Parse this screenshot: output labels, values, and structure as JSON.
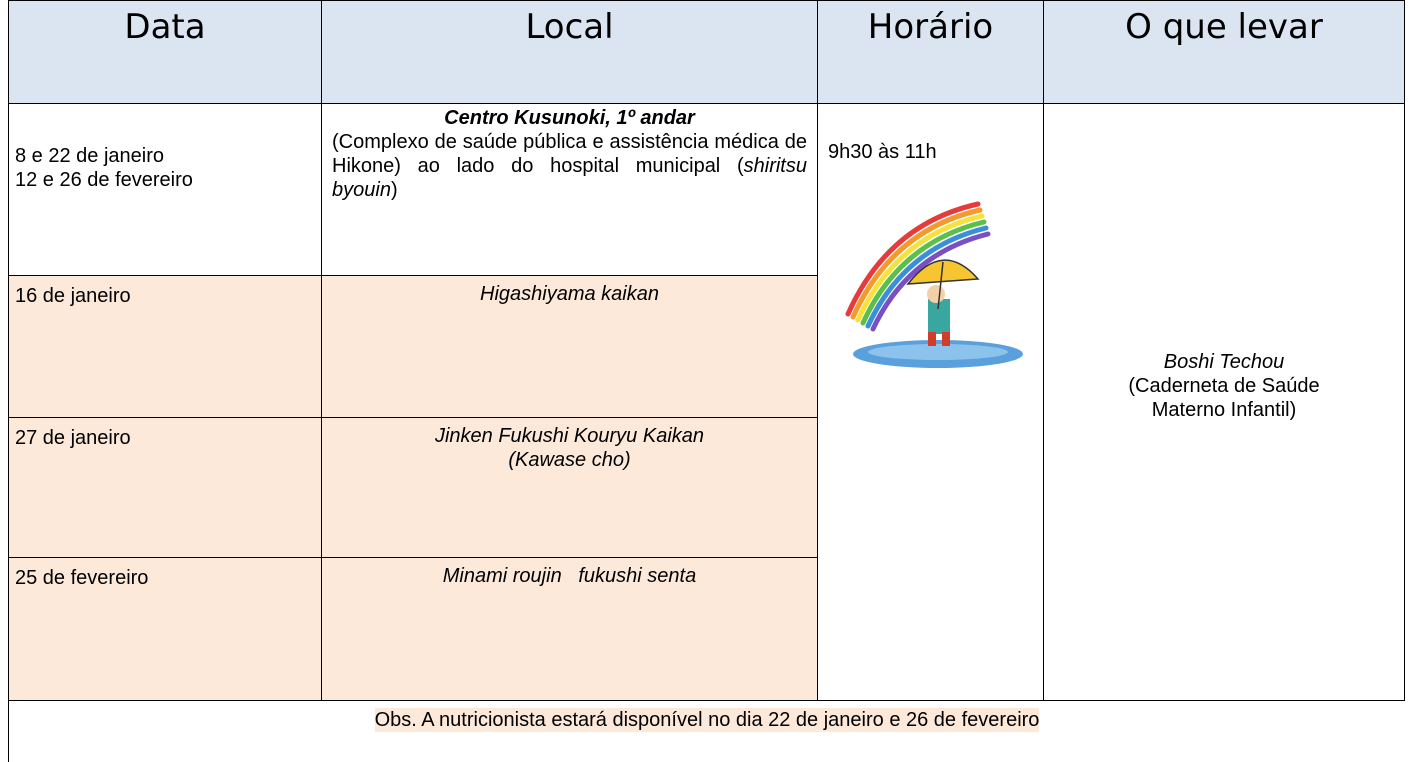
{
  "table": {
    "header": [
      "Data",
      "Local",
      "Horário",
      "O que levar"
    ],
    "rows": [
      {
        "date": [
          "8 e 22 de janeiro",
          "12 e 26 de fevereiro"
        ],
        "local_title": "Centro Kusunoki, 1º andar",
        "local_text": "(Complexo de saúde pública e assistência médica de Hikone) ao lado do hospital municipal (",
        "local_italic": "shiritsu byouin",
        "local_end": ")"
      },
      {
        "date": [
          "16 de janeiro"
        ],
        "local": "Higashiyama kaikan"
      },
      {
        "date": [
          "27 de janeiro"
        ],
        "local": "Jinken Fukushi Kouryu Kaikan (Kawase cho)"
      },
      {
        "date": [
          "25 de fevereiro"
        ],
        "local": "Minami roujin   fukushi senta"
      }
    ],
    "time": "9h30 às 11h",
    "bring_title": "Boshi Techou",
    "bring_text": "(Caderneta de Saúde Materno Infantil)"
  },
  "note": "Obs. A nutricionista estará disponível no dia 22 de janeiro e 26 de fevereiro"
}
